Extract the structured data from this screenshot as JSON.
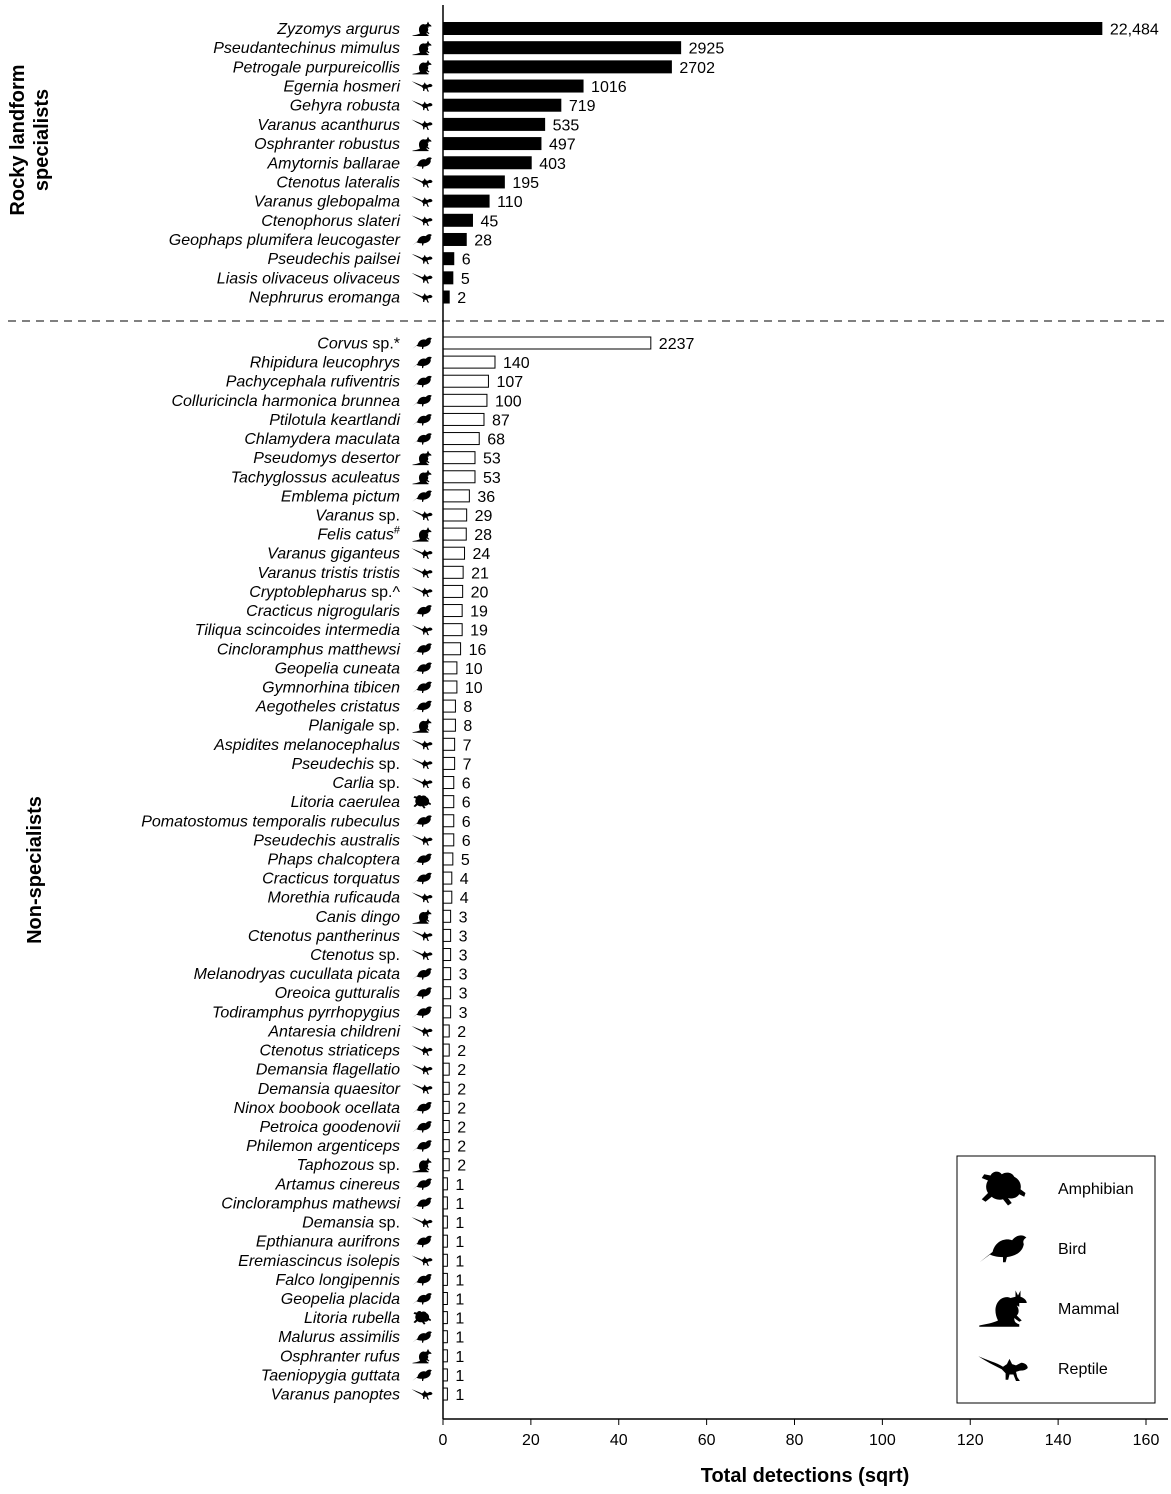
{
  "chart_data": {
    "type": "bar",
    "orientation": "horizontal",
    "xlabel": "Total detections (sqrt)",
    "xlim": [
      0,
      160
    ],
    "xticks": [
      0,
      20,
      40,
      60,
      80,
      100,
      120,
      140,
      160
    ],
    "xtick_labels": [
      "0",
      "20",
      "40",
      "60",
      "80",
      "100",
      "120",
      "140",
      "160"
    ],
    "bar_value_transform": "sqrt",
    "groups": [
      {
        "name": "Rocky landform specialists",
        "fill": "#000000",
        "items": [
          {
            "species": "Zyzomys argurus",
            "value": 22484,
            "label": "22,484",
            "class": "mammal"
          },
          {
            "species": "Pseudantechinus mimulus",
            "value": 2925,
            "label": "2925",
            "class": "mammal"
          },
          {
            "species": "Petrogale purpureicollis",
            "value": 2702,
            "label": "2702",
            "class": "mammal"
          },
          {
            "species": "Egernia hosmeri",
            "value": 1016,
            "label": "1016",
            "class": "reptile"
          },
          {
            "species": "Gehyra robusta",
            "value": 719,
            "label": "719",
            "class": "reptile"
          },
          {
            "species": "Varanus acanthurus",
            "value": 535,
            "label": "535",
            "class": "reptile"
          },
          {
            "species": "Osphranter robustus",
            "value": 497,
            "label": "497",
            "class": "mammal"
          },
          {
            "species": "Amytornis ballarae",
            "value": 403,
            "label": "403",
            "class": "bird"
          },
          {
            "species": "Ctenotus lateralis",
            "value": 195,
            "label": "195",
            "class": "reptile"
          },
          {
            "species": "Varanus glebopalma",
            "value": 110,
            "label": "110",
            "class": "reptile"
          },
          {
            "species": "Ctenophorus slateri",
            "value": 45,
            "label": "45",
            "class": "reptile"
          },
          {
            "species": "Geophaps plumifera leucogaster",
            "value": 28,
            "label": "28",
            "class": "bird"
          },
          {
            "species": "Pseudechis pailsei",
            "value": 6,
            "label": "6",
            "class": "reptile"
          },
          {
            "species": "Liasis olivaceus olivaceus",
            "value": 5,
            "label": "5",
            "class": "reptile"
          },
          {
            "species": "Nephrurus eromanga",
            "value": 2,
            "label": "2",
            "class": "reptile"
          }
        ]
      },
      {
        "name": "Non-specialists",
        "fill": "#ffffff",
        "items": [
          {
            "species": "Corvus",
            "suffix": " sp.*",
            "value": 2237,
            "label": "2237",
            "class": "bird"
          },
          {
            "species": "Rhipidura leucophrys",
            "value": 140,
            "label": "140",
            "class": "bird"
          },
          {
            "species": "Pachycephala rufiventris",
            "value": 107,
            "label": "107",
            "class": "bird"
          },
          {
            "species": "Colluricincla harmonica brunnea",
            "value": 100,
            "label": "100",
            "class": "bird"
          },
          {
            "species": "Ptilotula keartlandi",
            "value": 87,
            "label": "87",
            "class": "bird"
          },
          {
            "species": "Chlamydera maculata",
            "value": 68,
            "label": "68",
            "class": "bird"
          },
          {
            "species": "Pseudomys desertor",
            "value": 53,
            "label": "53",
            "class": "mammal"
          },
          {
            "species": "Tachyglossus aculeatus",
            "value": 53,
            "label": "53",
            "class": "mammal"
          },
          {
            "species": "Emblema pictum",
            "value": 36,
            "label": "36",
            "class": "bird"
          },
          {
            "species": "Varanus",
            "suffix": " sp.",
            "value": 29,
            "label": "29",
            "class": "reptile"
          },
          {
            "species": "Felis catus",
            "sup": "#",
            "value": 28,
            "label": "28",
            "class": "mammal"
          },
          {
            "species": "Varanus giganteus",
            "value": 24,
            "label": "24",
            "class": "reptile"
          },
          {
            "species": "Varanus tristis tristis",
            "value": 21,
            "label": "21",
            "class": "reptile"
          },
          {
            "species": "Cryptoblepharus",
            "suffix": " sp.^",
            "value": 20,
            "label": "20",
            "class": "reptile"
          },
          {
            "species": "Cracticus nigrogularis",
            "value": 19,
            "label": "19",
            "class": "bird"
          },
          {
            "species": "Tiliqua scincoides intermedia",
            "value": 19,
            "label": "19",
            "class": "reptile"
          },
          {
            "species": "Cincloramphus matthewsi",
            "value": 16,
            "label": "16",
            "class": "bird"
          },
          {
            "species": "Geopelia cuneata",
            "value": 10,
            "label": "10",
            "class": "bird"
          },
          {
            "species": "Gymnorhina tibicen",
            "value": 10,
            "label": "10",
            "class": "bird"
          },
          {
            "species": "Aegotheles cristatus",
            "value": 8,
            "label": "8",
            "class": "bird"
          },
          {
            "species": "Planigale",
            "suffix": " sp.",
            "value": 8,
            "label": "8",
            "class": "mammal"
          },
          {
            "species": "Aspidites melanocephalus",
            "value": 7,
            "label": "7",
            "class": "reptile"
          },
          {
            "species": "Pseudechis",
            "suffix": " sp.",
            "value": 7,
            "label": "7",
            "class": "reptile"
          },
          {
            "species": "Carlia",
            "suffix": " sp.",
            "value": 6,
            "label": "6",
            "class": "reptile"
          },
          {
            "species": "Litoria caerulea",
            "value": 6,
            "label": "6",
            "class": "amphibian"
          },
          {
            "species": "Pomatostomus temporalis rubeculus",
            "value": 6,
            "label": "6",
            "class": "bird"
          },
          {
            "species": "Pseudechis australis",
            "value": 6,
            "label": "6",
            "class": "reptile"
          },
          {
            "species": "Phaps chalcoptera",
            "value": 5,
            "label": "5",
            "class": "bird"
          },
          {
            "species": "Cracticus torquatus",
            "value": 4,
            "label": "4",
            "class": "bird"
          },
          {
            "species": "Morethia ruficauda",
            "value": 4,
            "label": "4",
            "class": "reptile"
          },
          {
            "species": "Canis dingo",
            "value": 3,
            "label": "3",
            "class": "mammal"
          },
          {
            "species": "Ctenotus pantherinus",
            "value": 3,
            "label": "3",
            "class": "reptile"
          },
          {
            "species": "Ctenotus",
            "suffix": " sp.",
            "value": 3,
            "label": "3",
            "class": "reptile"
          },
          {
            "species": "Melanodryas cucullata picata",
            "value": 3,
            "label": "3",
            "class": "bird"
          },
          {
            "species": "Oreoica gutturalis",
            "value": 3,
            "label": "3",
            "class": "bird"
          },
          {
            "species": "Todiramphus pyrrhopygius",
            "value": 3,
            "label": "3",
            "class": "bird"
          },
          {
            "species": "Antaresia childreni",
            "value": 2,
            "label": "2",
            "class": "reptile"
          },
          {
            "species": "Ctenotus striaticeps",
            "value": 2,
            "label": "2",
            "class": "reptile"
          },
          {
            "species": "Demansia flagellatio",
            "value": 2,
            "label": "2",
            "class": "reptile"
          },
          {
            "species": "Demansia quaesitor",
            "value": 2,
            "label": "2",
            "class": "reptile"
          },
          {
            "species": "Ninox boobook ocellata",
            "value": 2,
            "label": "2",
            "class": "bird"
          },
          {
            "species": "Petroica goodenovii",
            "value": 2,
            "label": "2",
            "class": "bird"
          },
          {
            "species": "Philemon argenticeps",
            "value": 2,
            "label": "2",
            "class": "bird"
          },
          {
            "species": "Taphozous",
            "suffix": " sp.",
            "value": 2,
            "label": "2",
            "class": "mammal"
          },
          {
            "species": "Artamus cinereus",
            "value": 1,
            "label": "1",
            "class": "bird"
          },
          {
            "species": "Cincloramphus mathewsi",
            "value": 1,
            "label": "1",
            "class": "bird"
          },
          {
            "species": "Demansia",
            "suffix": " sp.",
            "value": 1,
            "label": "1",
            "class": "reptile"
          },
          {
            "species": "Epthianura aurifrons",
            "value": 1,
            "label": "1",
            "class": "bird"
          },
          {
            "species": "Eremiascincus isolepis",
            "value": 1,
            "label": "1",
            "class": "reptile"
          },
          {
            "species": "Falco longipennis",
            "value": 1,
            "label": "1",
            "class": "bird"
          },
          {
            "species": "Geopelia placida",
            "value": 1,
            "label": "1",
            "class": "bird"
          },
          {
            "species": "Litoria rubella",
            "value": 1,
            "label": "1",
            "class": "amphibian"
          },
          {
            "species": "Malurus assimilis",
            "value": 1,
            "label": "1",
            "class": "bird"
          },
          {
            "species": "Osphranter rufus",
            "value": 1,
            "label": "1",
            "class": "mammal"
          },
          {
            "species": "Taeniopygia guttata",
            "value": 1,
            "label": "1",
            "class": "bird"
          },
          {
            "species": "Varanus panoptes",
            "value": 1,
            "label": "1",
            "class": "reptile"
          }
        ]
      }
    ],
    "legend": {
      "position": "bottom-right",
      "entries": [
        {
          "label": "Amphibian",
          "icon": "amphibian-icon"
        },
        {
          "label": "Bird",
          "icon": "bird-icon"
        },
        {
          "label": "Mammal",
          "icon": "mammal-icon"
        },
        {
          "label": "Reptile",
          "icon": "reptile-icon"
        }
      ]
    }
  }
}
